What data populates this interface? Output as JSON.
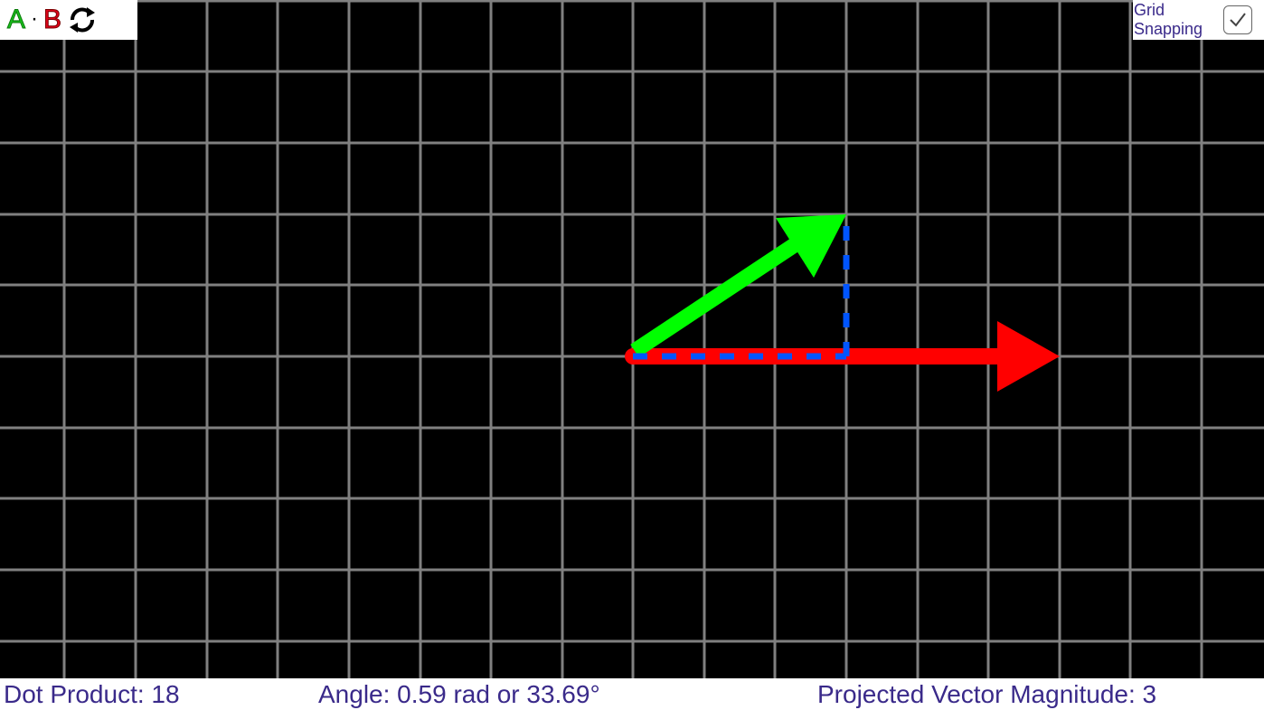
{
  "header": {
    "letter_a": "A",
    "dot_symbol": "·",
    "letter_b": "B",
    "swap_icon": "swap-arrows-icon"
  },
  "grid_snapping": {
    "label": "Grid Snapping",
    "checked": true
  },
  "vectors": {
    "a": {
      "color": "#00ff00",
      "x": 3,
      "y": 2
    },
    "b": {
      "color": "#ff0000",
      "x": 6,
      "y": 0
    },
    "projection": {
      "color": "#0055ff",
      "magnitude": 3
    }
  },
  "status": {
    "dot_product": "Dot Product: 18",
    "angle": "Angle: 0.59 rad  or 33.69°",
    "projected_magnitude": "Projected Vector Magnitude: 3"
  },
  "colors": {
    "grid": "#808080",
    "background": "#000000",
    "text": "#3a2a8a"
  }
}
